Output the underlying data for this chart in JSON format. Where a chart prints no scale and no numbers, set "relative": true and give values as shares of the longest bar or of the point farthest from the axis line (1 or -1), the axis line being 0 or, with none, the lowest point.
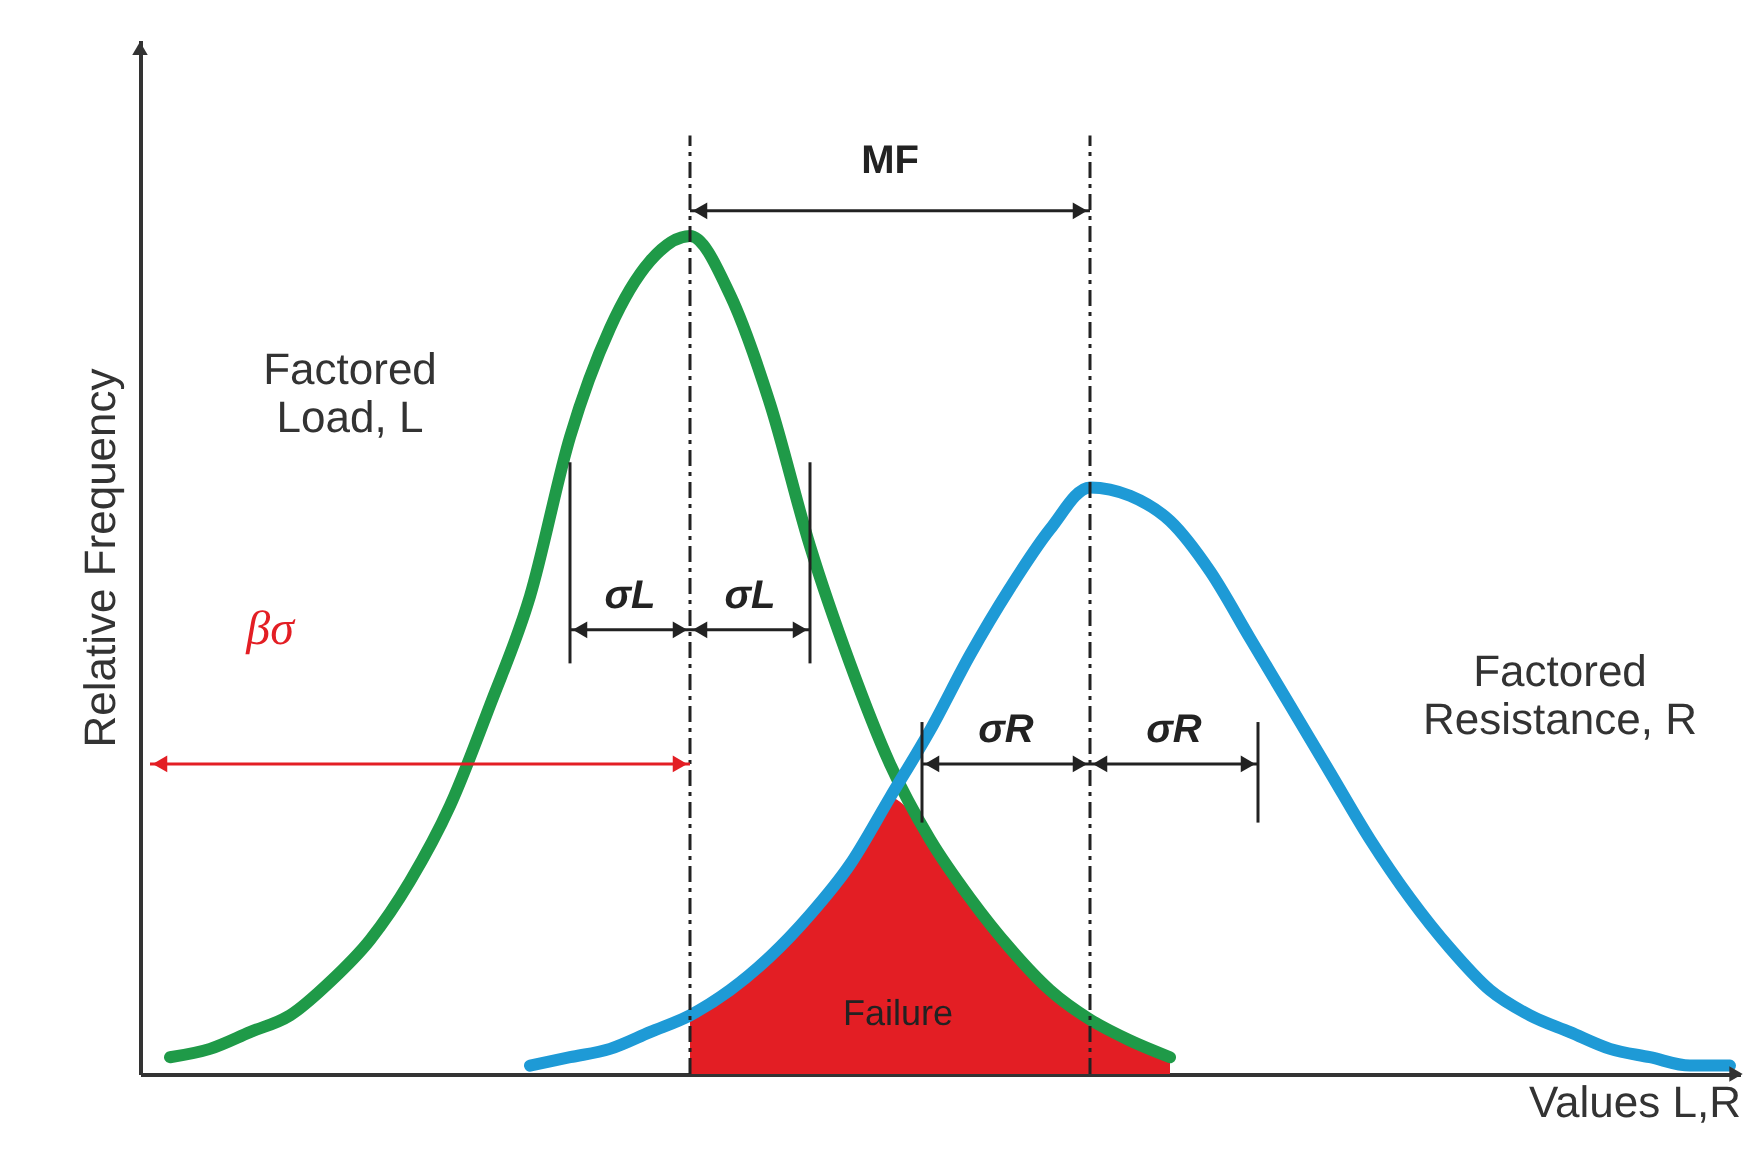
{
  "chart_data": {
    "type": "line",
    "relative": true,
    "xlabel": "Values L,R",
    "ylabel": "Relative Frequency",
    "categories": [
      null,
      null,
      null,
      null,
      null,
      null,
      null,
      null,
      null,
      null,
      null,
      null,
      null,
      null,
      null,
      null,
      null,
      null,
      null,
      null,
      null,
      null,
      null,
      null,
      null,
      null,
      null,
      null,
      null,
      null,
      null,
      null,
      null,
      null,
      null,
      null,
      null,
      null,
      null,
      null
    ],
    "series": [
      {
        "type": "area",
        "color": "#e31e24",
        "values": [
          null,
          null,
          null,
          null,
          null,
          null,
          null,
          null,
          null,
          null,
          null,
          null,
          null,
          0.07,
          0.1,
          0.14,
          0.19,
          0.25,
          0.33,
          0.28,
          0.21,
          0.15,
          0.1,
          0.065,
          0.04,
          0.02,
          null,
          null,
          null,
          null,
          null,
          null,
          null,
          null,
          null,
          null,
          null,
          null,
          null,
          null
        ]
      },
      {
        "color": "#1f9a48",
        "values": [
          0.02,
          0.03,
          0.05,
          0.07,
          0.11,
          0.16,
          0.23,
          0.32,
          0.44,
          0.57,
          0.76,
          0.89,
          0.97,
          1.0,
          0.93,
          0.8,
          0.63,
          0.49,
          0.37,
          0.28,
          0.21,
          0.15,
          0.1,
          0.065,
          0.04,
          0.02,
          null,
          null,
          null,
          null,
          null,
          null,
          null,
          null,
          null,
          null,
          null,
          null,
          null,
          null
        ]
      },
      {
        "color": "#1e9ad6",
        "values": [
          null,
          null,
          null,
          null,
          null,
          null,
          null,
          null,
          null,
          0.01,
          0.02,
          0.03,
          0.05,
          0.07,
          0.1,
          0.14,
          0.19,
          0.25,
          0.33,
          0.41,
          0.5,
          0.58,
          0.65,
          0.7,
          0.69,
          0.66,
          0.6,
          0.52,
          0.44,
          0.36,
          0.28,
          0.21,
          0.15,
          0.1,
          0.07,
          0.05,
          0.03,
          0.02,
          0.01,
          0.01
        ]
      }
    ],
    "annotations": [
      "Factored\nLoad, L",
      "Factored\nResistance, R",
      "Failure",
      "MF",
      "σL",
      "σL",
      "σR",
      "σR",
      "βσ"
    ]
  }
}
